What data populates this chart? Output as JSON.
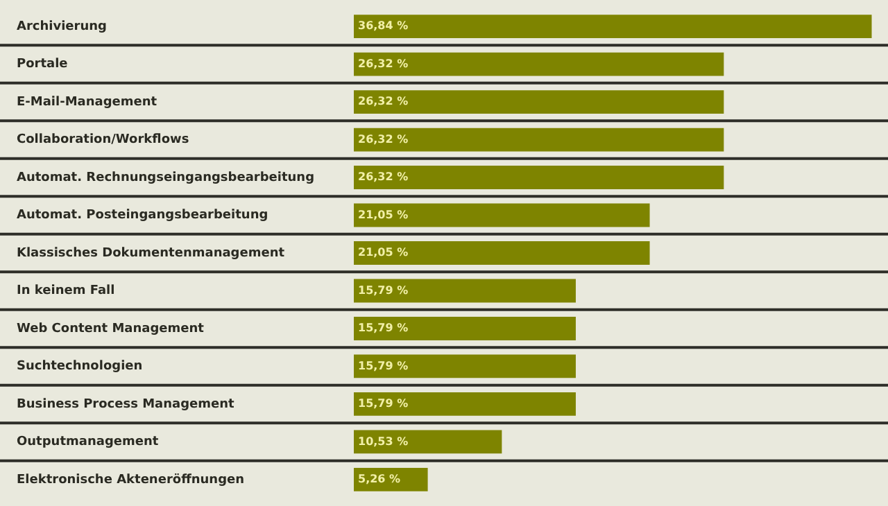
{
  "chart_data": {
    "type": "bar",
    "orientation": "horizontal",
    "categories": [
      "Archivierung",
      "Portale",
      "E-Mail-Management",
      "Collaboration/Workflows",
      "Automat. Rechnungseingangsbearbeitung",
      "Automat. Posteingangsbearbeitung",
      "Klassisches Dokumentenmanagement",
      "In keinem Fall",
      "Web Content Management",
      "Suchtechnologien",
      "Business Process Management",
      "Outputmanagement",
      "Elektronische Akteneröffnungen"
    ],
    "values": [
      36.84,
      26.32,
      26.32,
      26.32,
      26.32,
      21.05,
      21.05,
      15.79,
      15.79,
      15.79,
      15.79,
      10.53,
      5.26
    ],
    "value_labels": [
      "36,84 %",
      "26,32 %",
      "26,32 %",
      "26,32 %",
      "26,32 %",
      "21,05 %",
      "21,05 %",
      "15,79 %",
      "15,79 %",
      "15,79 %",
      "15,79 %",
      "10,53 %",
      "5,26 %"
    ],
    "color": "#7e8400",
    "xlim": [
      0,
      38
    ],
    "tick_labels": "y",
    "grid": "y",
    "legend": false
  }
}
